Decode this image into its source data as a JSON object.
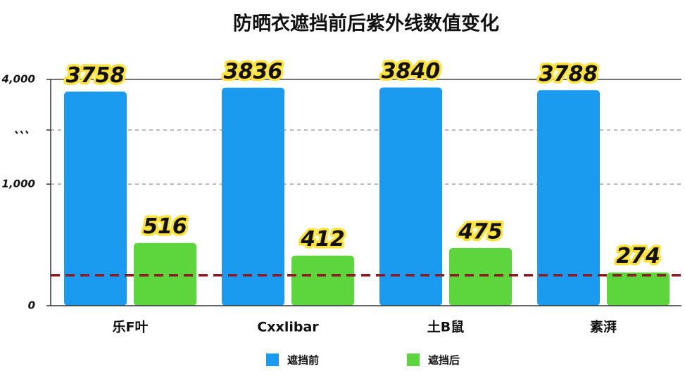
{
  "chart_data": {
    "type": "bar",
    "title": "防晒衣遮挡前后紫外线数值变化",
    "categories": [
      "乐F叶",
      "Cxxlibar",
      "土B鼠",
      "素湃"
    ],
    "series": [
      {
        "name": "遮挡前",
        "color": "#1a9bf0",
        "values": [
          3758,
          3836,
          3840,
          3788
        ]
      },
      {
        "name": "遮挡后",
        "color": "#5cd63c",
        "values": [
          516,
          412,
          475,
          274
        ]
      }
    ],
    "ylim": [
      0,
      4000
    ],
    "yticks": [
      0,
      {
        "value": 1000,
        "label": "1,000"
      },
      {
        "value": 3000,
        "label": "、、、"
      },
      {
        "value": 4000,
        "label": "4,000"
      }
    ],
    "axis_break": true,
    "grid": true,
    "reference_line": {
      "value": 250,
      "color": "#8b1c24"
    },
    "legend": "bottom"
  }
}
